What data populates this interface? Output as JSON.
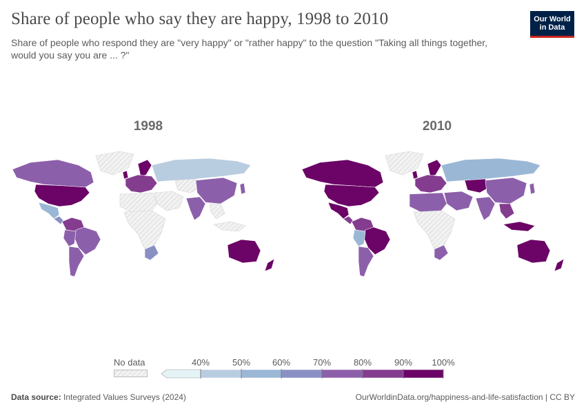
{
  "header": {
    "title": "Share of people who say they are happy, 1998 to 2010",
    "subtitle": "Share of people who respond they are \"very happy\" or \"rather happy\" to the question \"Taking all things together, would you say you are ... ?\""
  },
  "logo": {
    "line1": "Our World",
    "line2": "in Data",
    "bg_color": "#002147",
    "accent_color": "#ce261e"
  },
  "maps": [
    {
      "year": "1998",
      "regions": {
        "greenland": "nodata",
        "canada": "c80",
        "usa": "c100",
        "mexico": "c60",
        "central_america": "c70",
        "south_america_north": "c90",
        "brazil": "c80",
        "peru_bolivia": "c80",
        "argentina_chile": "c80",
        "europe": "c90",
        "scandinavia": "c100",
        "uk": "c100",
        "russia": "c50",
        "china": "c80",
        "india": "c80",
        "middle_east": "nodata",
        "north_africa": "nodata",
        "africa": "nodata",
        "south_africa": "c70",
        "southeast_asia": "nodata",
        "indonesia": "nodata",
        "japan": "c80",
        "australia": "c100",
        "new_zealand": "c100",
        "central_asia": "nodata"
      }
    },
    {
      "year": "2010",
      "regions": {
        "greenland": "nodata",
        "canada": "c100",
        "usa": "c100",
        "mexico": "c100",
        "central_america": "c90",
        "south_america_north": "c90",
        "brazil": "c100",
        "peru_bolivia": "c60",
        "argentina_chile": "c80",
        "europe": "c90",
        "scandinavia": "c100",
        "uk": "c100",
        "russia": "c60",
        "china": "c80",
        "india": "c80",
        "middle_east": "c80",
        "north_africa": "c80",
        "africa": "nodata",
        "south_africa": "c80",
        "southeast_asia": "c90",
        "indonesia": "c100",
        "japan": "c80",
        "australia": "c100",
        "new_zealand": "c100",
        "central_asia": "c100"
      }
    }
  ],
  "legend": {
    "no_data_label": "No data",
    "ticks": [
      "40%",
      "50%",
      "60%",
      "70%",
      "80%",
      "90%",
      "100%"
    ],
    "bins": [
      {
        "key": "c40",
        "color": "#e4f3f6"
      },
      {
        "key": "c50",
        "color": "#b9cde0"
      },
      {
        "key": "c60",
        "color": "#9bb7d6"
      },
      {
        "key": "c70",
        "color": "#8a90c4"
      },
      {
        "key": "c80",
        "color": "#8c5fab"
      },
      {
        "key": "c90",
        "color": "#843c8f"
      },
      {
        "key": "c100",
        "color": "#6b0466"
      }
    ],
    "nodata_color": "#f0f0f0"
  },
  "footer": {
    "source_label": "Data source:",
    "source_value": "Integrated Values Surveys (2024)",
    "url": "OurWorldinData.org/happiness-and-life-satisfaction | CC BY"
  }
}
